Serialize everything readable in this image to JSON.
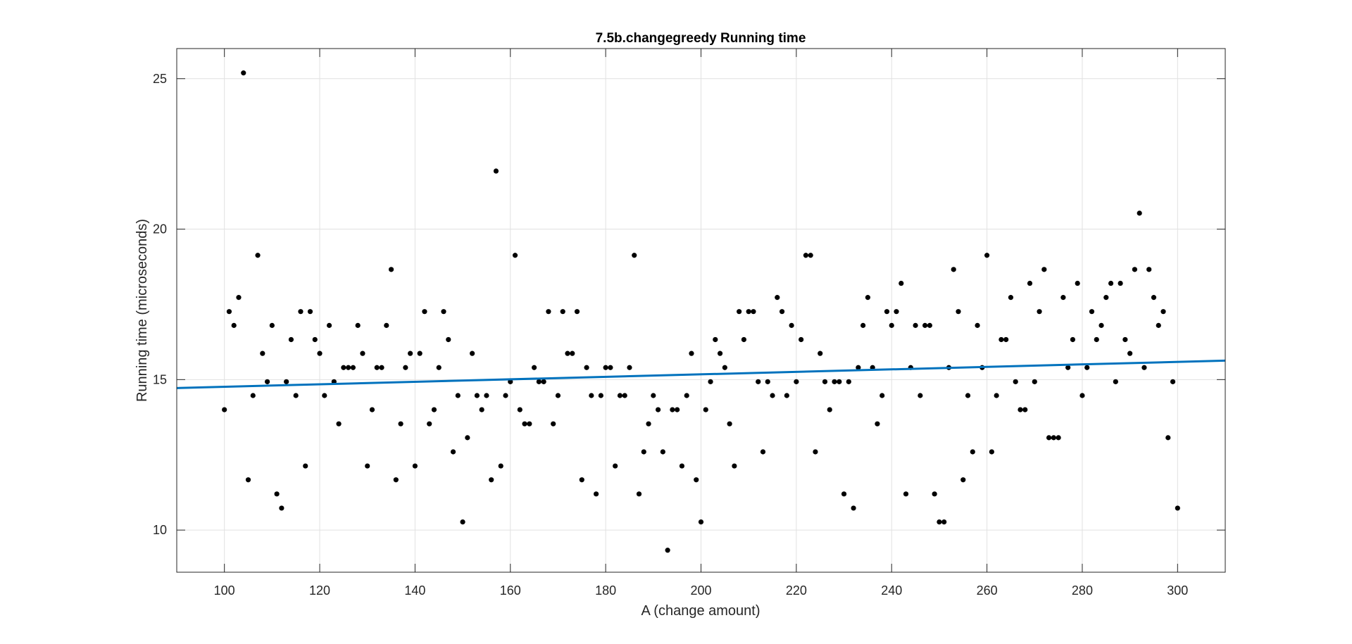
{
  "chart_data": {
    "type": "scatter",
    "title": "7.5b.changegreedy Running time",
    "xlabel": "A (change amount)",
    "ylabel": "Running time (microseconds)",
    "xlim": [
      90,
      310
    ],
    "ylim": [
      8.6,
      26
    ],
    "xticks": [
      100,
      120,
      140,
      160,
      180,
      200,
      220,
      240,
      260,
      280,
      300
    ],
    "yticks": [
      10,
      15,
      20,
      25
    ],
    "grid": true,
    "point_color": "#000000",
    "fit_color": "#0072BD",
    "fit_line": {
      "x": [
        90,
        310
      ],
      "y": [
        14.72,
        15.63
      ]
    },
    "points": [
      [
        100,
        14.0
      ],
      [
        101,
        17.26
      ],
      [
        102,
        16.8
      ],
      [
        103,
        17.73
      ],
      [
        104,
        25.19
      ],
      [
        105,
        11.67
      ],
      [
        106,
        14.47
      ],
      [
        107,
        19.13
      ],
      [
        108,
        15.87
      ],
      [
        109,
        14.93
      ],
      [
        110,
        16.8
      ],
      [
        111,
        11.2
      ],
      [
        112,
        10.73
      ],
      [
        113,
        14.93
      ],
      [
        114,
        16.33
      ],
      [
        115,
        14.47
      ],
      [
        116,
        17.26
      ],
      [
        117,
        12.13
      ],
      [
        118,
        17.26
      ],
      [
        119,
        16.33
      ],
      [
        120,
        15.87
      ],
      [
        121,
        14.47
      ],
      [
        122,
        16.8
      ],
      [
        123,
        14.93
      ],
      [
        124,
        13.53
      ],
      [
        125,
        15.4
      ],
      [
        126,
        15.4
      ],
      [
        127,
        15.4
      ],
      [
        128,
        16.8
      ],
      [
        129,
        15.87
      ],
      [
        130,
        12.13
      ],
      [
        131,
        14.0
      ],
      [
        132,
        15.4
      ],
      [
        133,
        15.4
      ],
      [
        134,
        16.8
      ],
      [
        135,
        18.66
      ],
      [
        136,
        11.67
      ],
      [
        137,
        13.53
      ],
      [
        138,
        15.4
      ],
      [
        139,
        15.87
      ],
      [
        140,
        12.13
      ],
      [
        141,
        15.87
      ],
      [
        142,
        17.26
      ],
      [
        143,
        13.53
      ],
      [
        144,
        14.0
      ],
      [
        145,
        15.4
      ],
      [
        146,
        17.26
      ],
      [
        147,
        16.33
      ],
      [
        148,
        12.6
      ],
      [
        149,
        14.47
      ],
      [
        150,
        10.27
      ],
      [
        151,
        13.07
      ],
      [
        152,
        15.87
      ],
      [
        153,
        14.47
      ],
      [
        154,
        14.0
      ],
      [
        155,
        14.47
      ],
      [
        156,
        11.67
      ],
      [
        157,
        21.93
      ],
      [
        158,
        12.13
      ],
      [
        159,
        14.47
      ],
      [
        160,
        14.93
      ],
      [
        161,
        19.13
      ],
      [
        162,
        14.0
      ],
      [
        163,
        13.53
      ],
      [
        164,
        13.53
      ],
      [
        165,
        15.4
      ],
      [
        166,
        14.93
      ],
      [
        167,
        14.93
      ],
      [
        168,
        17.26
      ],
      [
        169,
        13.53
      ],
      [
        170,
        14.47
      ],
      [
        171,
        17.26
      ],
      [
        172,
        15.87
      ],
      [
        173,
        15.87
      ],
      [
        174,
        17.26
      ],
      [
        175,
        11.67
      ],
      [
        176,
        15.4
      ],
      [
        177,
        14.47
      ],
      [
        178,
        11.2
      ],
      [
        179,
        14.47
      ],
      [
        180,
        15.4
      ],
      [
        181,
        15.4
      ],
      [
        182,
        12.13
      ],
      [
        183,
        14.47
      ],
      [
        184,
        14.47
      ],
      [
        185,
        15.4
      ],
      [
        186,
        19.13
      ],
      [
        187,
        11.2
      ],
      [
        188,
        12.6
      ],
      [
        189,
        13.53
      ],
      [
        190,
        14.47
      ],
      [
        191,
        14.0
      ],
      [
        192,
        12.6
      ],
      [
        193,
        9.33
      ],
      [
        194,
        14.0
      ],
      [
        195,
        14.0
      ],
      [
        196,
        12.13
      ],
      [
        197,
        14.47
      ],
      [
        198,
        15.87
      ],
      [
        199,
        11.67
      ],
      [
        200,
        10.27
      ],
      [
        201,
        14.0
      ],
      [
        202,
        14.93
      ],
      [
        203,
        16.33
      ],
      [
        204,
        15.87
      ],
      [
        205,
        15.4
      ],
      [
        206,
        13.53
      ],
      [
        207,
        12.13
      ],
      [
        208,
        17.26
      ],
      [
        209,
        16.33
      ],
      [
        210,
        17.26
      ],
      [
        211,
        17.26
      ],
      [
        212,
        14.93
      ],
      [
        213,
        12.6
      ],
      [
        214,
        14.93
      ],
      [
        215,
        14.47
      ],
      [
        216,
        17.73
      ],
      [
        217,
        17.26
      ],
      [
        218,
        14.47
      ],
      [
        219,
        16.8
      ],
      [
        220,
        14.93
      ],
      [
        221,
        16.33
      ],
      [
        222,
        19.13
      ],
      [
        223,
        19.13
      ],
      [
        224,
        12.6
      ],
      [
        225,
        15.87
      ],
      [
        226,
        14.93
      ],
      [
        227,
        14.0
      ],
      [
        228,
        14.93
      ],
      [
        229,
        14.93
      ],
      [
        230,
        11.2
      ],
      [
        231,
        14.93
      ],
      [
        232,
        10.73
      ],
      [
        233,
        15.4
      ],
      [
        234,
        16.8
      ],
      [
        235,
        17.73
      ],
      [
        236,
        15.4
      ],
      [
        237,
        13.53
      ],
      [
        238,
        14.47
      ],
      [
        239,
        17.26
      ],
      [
        240,
        16.8
      ],
      [
        241,
        17.26
      ],
      [
        242,
        18.2
      ],
      [
        243,
        11.2
      ],
      [
        244,
        15.4
      ],
      [
        245,
        16.8
      ],
      [
        246,
        14.47
      ],
      [
        247,
        16.8
      ],
      [
        248,
        16.8
      ],
      [
        249,
        11.2
      ],
      [
        250,
        10.27
      ],
      [
        251,
        10.27
      ],
      [
        252,
        15.4
      ],
      [
        253,
        18.66
      ],
      [
        254,
        17.26
      ],
      [
        255,
        11.67
      ],
      [
        256,
        14.47
      ],
      [
        257,
        12.6
      ],
      [
        258,
        16.8
      ],
      [
        259,
        15.4
      ],
      [
        260,
        19.13
      ],
      [
        261,
        12.6
      ],
      [
        262,
        14.47
      ],
      [
        263,
        16.33
      ],
      [
        264,
        16.33
      ],
      [
        265,
        17.73
      ],
      [
        266,
        14.93
      ],
      [
        267,
        14.0
      ],
      [
        268,
        14.0
      ],
      [
        269,
        18.2
      ],
      [
        270,
        14.93
      ],
      [
        271,
        17.26
      ],
      [
        272,
        18.66
      ],
      [
        273,
        13.07
      ],
      [
        274,
        13.07
      ],
      [
        275,
        13.07
      ],
      [
        276,
        17.73
      ],
      [
        277,
        15.4
      ],
      [
        278,
        16.33
      ],
      [
        279,
        18.2
      ],
      [
        280,
        14.47
      ],
      [
        281,
        15.4
      ],
      [
        282,
        17.26
      ],
      [
        283,
        16.33
      ],
      [
        284,
        16.8
      ],
      [
        285,
        17.73
      ],
      [
        286,
        18.2
      ],
      [
        287,
        14.93
      ],
      [
        288,
        18.2
      ],
      [
        289,
        16.33
      ],
      [
        290,
        15.87
      ],
      [
        291,
        18.66
      ],
      [
        292,
        20.53
      ],
      [
        293,
        15.4
      ],
      [
        294,
        18.66
      ],
      [
        295,
        17.73
      ],
      [
        296,
        16.8
      ],
      [
        297,
        17.26
      ],
      [
        298,
        13.07
      ],
      [
        299,
        14.93
      ],
      [
        300,
        10.73
      ]
    ]
  }
}
